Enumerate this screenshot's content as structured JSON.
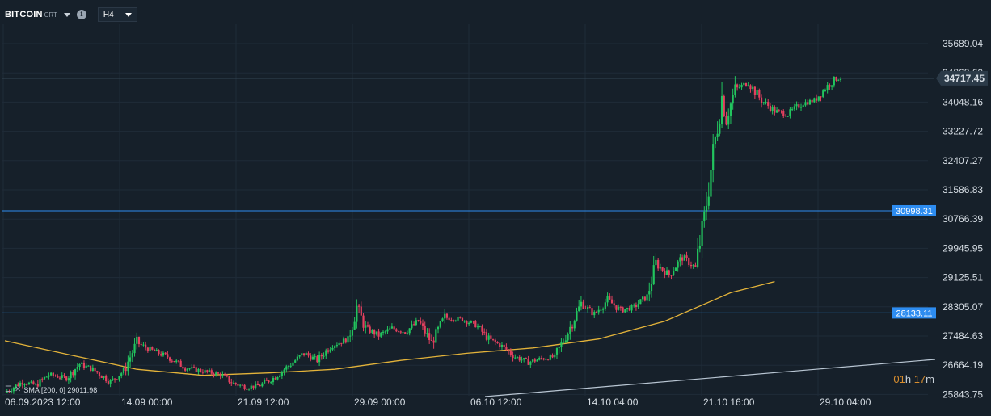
{
  "header": {
    "symbol": "BITCOIN",
    "symbol_suffix": "CRT",
    "info_glyph": "i",
    "timeframe": "H4"
  },
  "price_axis": {
    "ticks": [
      "35689.04",
      "34048.16",
      "33227.72",
      "32407.27",
      "31586.83",
      "30766.39",
      "29945.95",
      "29125.51",
      "28305.07",
      "27484.63",
      "26664.19",
      "25843.75"
    ],
    "partial_tick": "34868.60"
  },
  "time_axis": {
    "labels": [
      "06.09.2023  12:00",
      "14.09  00:00",
      "21.09  12:00",
      "29.09  00:00",
      "06.10  12:00",
      "14.10  04:00",
      "21.10  16:00",
      "29.10  04:00"
    ]
  },
  "current_price": {
    "value": "34717.45",
    "color": "#d5dbe1"
  },
  "levels": [
    {
      "value": "30998.31",
      "color": "#2d8cf0"
    },
    {
      "value": "28133.11",
      "color": "#2d8cf0"
    }
  ],
  "countdown": {
    "hours": "01",
    "h_unit": "h",
    "minutes": "17",
    "m_unit": "m"
  },
  "indicator": {
    "label": "SMA [200, 0] 29011.98",
    "color": "#e3b33a"
  },
  "colors": {
    "bull": "#22c55e",
    "bear": "#e4405f",
    "background": "#16202a",
    "grid": "#1f2b38",
    "trendline": "#b9c6d3"
  },
  "chart_data": {
    "type": "candlestick",
    "y_range": [
      25843.75,
      35689.04
    ],
    "x_range": [
      "06.09.2023 12:00",
      "31.10.2023"
    ],
    "grid": true,
    "price_ticks": [
      25843.75,
      26664.19,
      27484.63,
      28305.07,
      29125.51,
      29945.95,
      30766.39,
      31586.83,
      32407.27,
      33227.72,
      34048.16,
      34868.6,
      35689.04
    ],
    "horizontal_levels": [
      30998.31,
      28133.11
    ],
    "last_price": 34717.45,
    "close_path": [
      [
        0,
        25900
      ],
      [
        8,
        26200
      ],
      [
        14,
        26100
      ],
      [
        20,
        26400
      ],
      [
        28,
        26300
      ],
      [
        34,
        26700
      ],
      [
        40,
        26550
      ],
      [
        48,
        26200
      ],
      [
        54,
        26500
      ],
      [
        60,
        27300
      ],
      [
        66,
        27100
      ],
      [
        74,
        26900
      ],
      [
        82,
        26600
      ],
      [
        90,
        26500
      ],
      [
        98,
        26400
      ],
      [
        104,
        26150
      ],
      [
        110,
        26050
      ],
      [
        116,
        26100
      ],
      [
        122,
        26300
      ],
      [
        128,
        26600
      ],
      [
        136,
        27000
      ],
      [
        142,
        26800
      ],
      [
        148,
        27200
      ],
      [
        156,
        27400
      ],
      [
        160,
        28300
      ],
      [
        164,
        27700
      ],
      [
        170,
        27500
      ],
      [
        176,
        27700
      ],
      [
        182,
        27600
      ],
      [
        188,
        27900
      ],
      [
        194,
        27300
      ],
      [
        200,
        28000
      ],
      [
        208,
        27950
      ],
      [
        214,
        27800
      ],
      [
        220,
        27400
      ],
      [
        226,
        27200
      ],
      [
        232,
        26900
      ],
      [
        238,
        26750
      ],
      [
        244,
        26850
      ],
      [
        250,
        26900
      ],
      [
        256,
        27600
      ],
      [
        262,
        28400
      ],
      [
        268,
        28100
      ],
      [
        274,
        28500
      ],
      [
        280,
        28200
      ],
      [
        286,
        28300
      ],
      [
        292,
        28600
      ],
      [
        296,
        29500
      ],
      [
        302,
        29200
      ],
      [
        308,
        29700
      ],
      [
        314,
        29400
      ],
      [
        318,
        30800
      ],
      [
        322,
        32600
      ],
      [
        326,
        34200
      ],
      [
        328,
        33600
      ],
      [
        332,
        34400
      ],
      [
        338,
        34600
      ],
      [
        344,
        34100
      ],
      [
        350,
        33800
      ],
      [
        356,
        33700
      ],
      [
        362,
        34000
      ],
      [
        368,
        34100
      ],
      [
        374,
        34500
      ],
      [
        378,
        34717.45
      ]
    ],
    "sma_200": {
      "name": "SMA [200, 0]",
      "last": 29011.98,
      "x": [
        0,
        30,
        60,
        90,
        120,
        150,
        180,
        210,
        240,
        270,
        300,
        330,
        350
      ],
      "y": [
        27350,
        26950,
        26550,
        26380,
        26450,
        26550,
        26800,
        27000,
        27150,
        27400,
        27900,
        28700,
        29011.98
      ]
    }
  }
}
